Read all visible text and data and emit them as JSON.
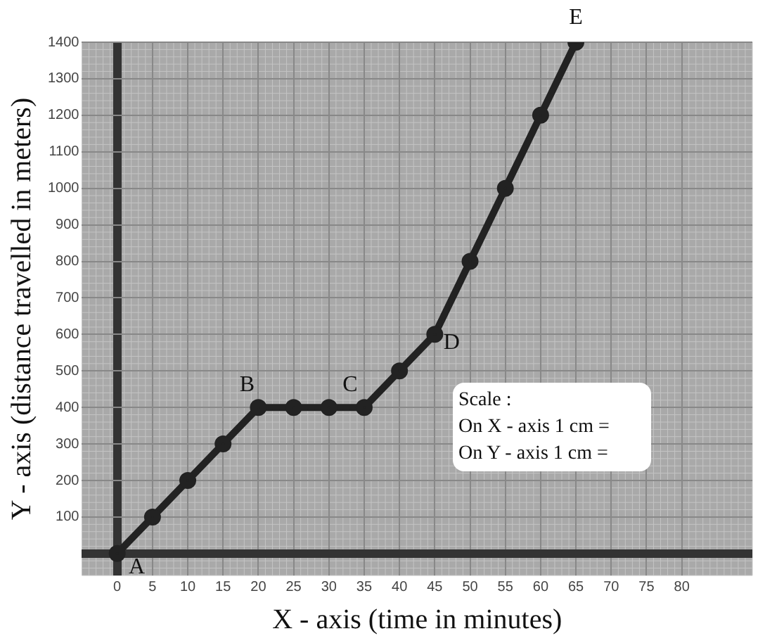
{
  "chart_data": {
    "type": "line",
    "xlabel": "X - axis (time in minutes)",
    "ylabel": "Y - axis (distance travelled in meters)",
    "x": [
      0,
      5,
      10,
      15,
      20,
      25,
      30,
      35,
      40,
      45,
      50,
      55,
      60,
      65
    ],
    "series": [
      {
        "color": "#222222",
        "values": [
          0,
          100,
          200,
          300,
          400,
          400,
          400,
          400,
          500,
          600,
          800,
          1000,
          1200,
          1400
        ]
      }
    ],
    "xlim": [
      -5,
      90
    ],
    "ylim": [
      -60,
      1400
    ],
    "xticks": [
      0,
      5,
      10,
      15,
      20,
      25,
      30,
      35,
      40,
      45,
      50,
      55,
      60,
      65,
      70,
      75,
      80
    ],
    "yticks": [
      {
        "value": 0,
        "label": null
      },
      100,
      200,
      300,
      400,
      500,
      600,
      700,
      800,
      900,
      1000,
      1100,
      1200,
      1300,
      1400
    ],
    "grid": true,
    "legend": false,
    "marker": "circle",
    "line_style": "solid",
    "annotations": [
      {
        "text": "A",
        "x": 0,
        "y": 0
      },
      {
        "text": "B",
        "x": 20,
        "y": 400
      },
      {
        "text": "C",
        "x": 35,
        "y": 400
      },
      {
        "text": "D",
        "x": 45,
        "y": 600
      },
      {
        "text": "E",
        "x": 65,
        "y": 1400
      },
      "Scale :\nOn X - axis 1 cm =\nOn Y - axis 1 cm ="
    ]
  }
}
